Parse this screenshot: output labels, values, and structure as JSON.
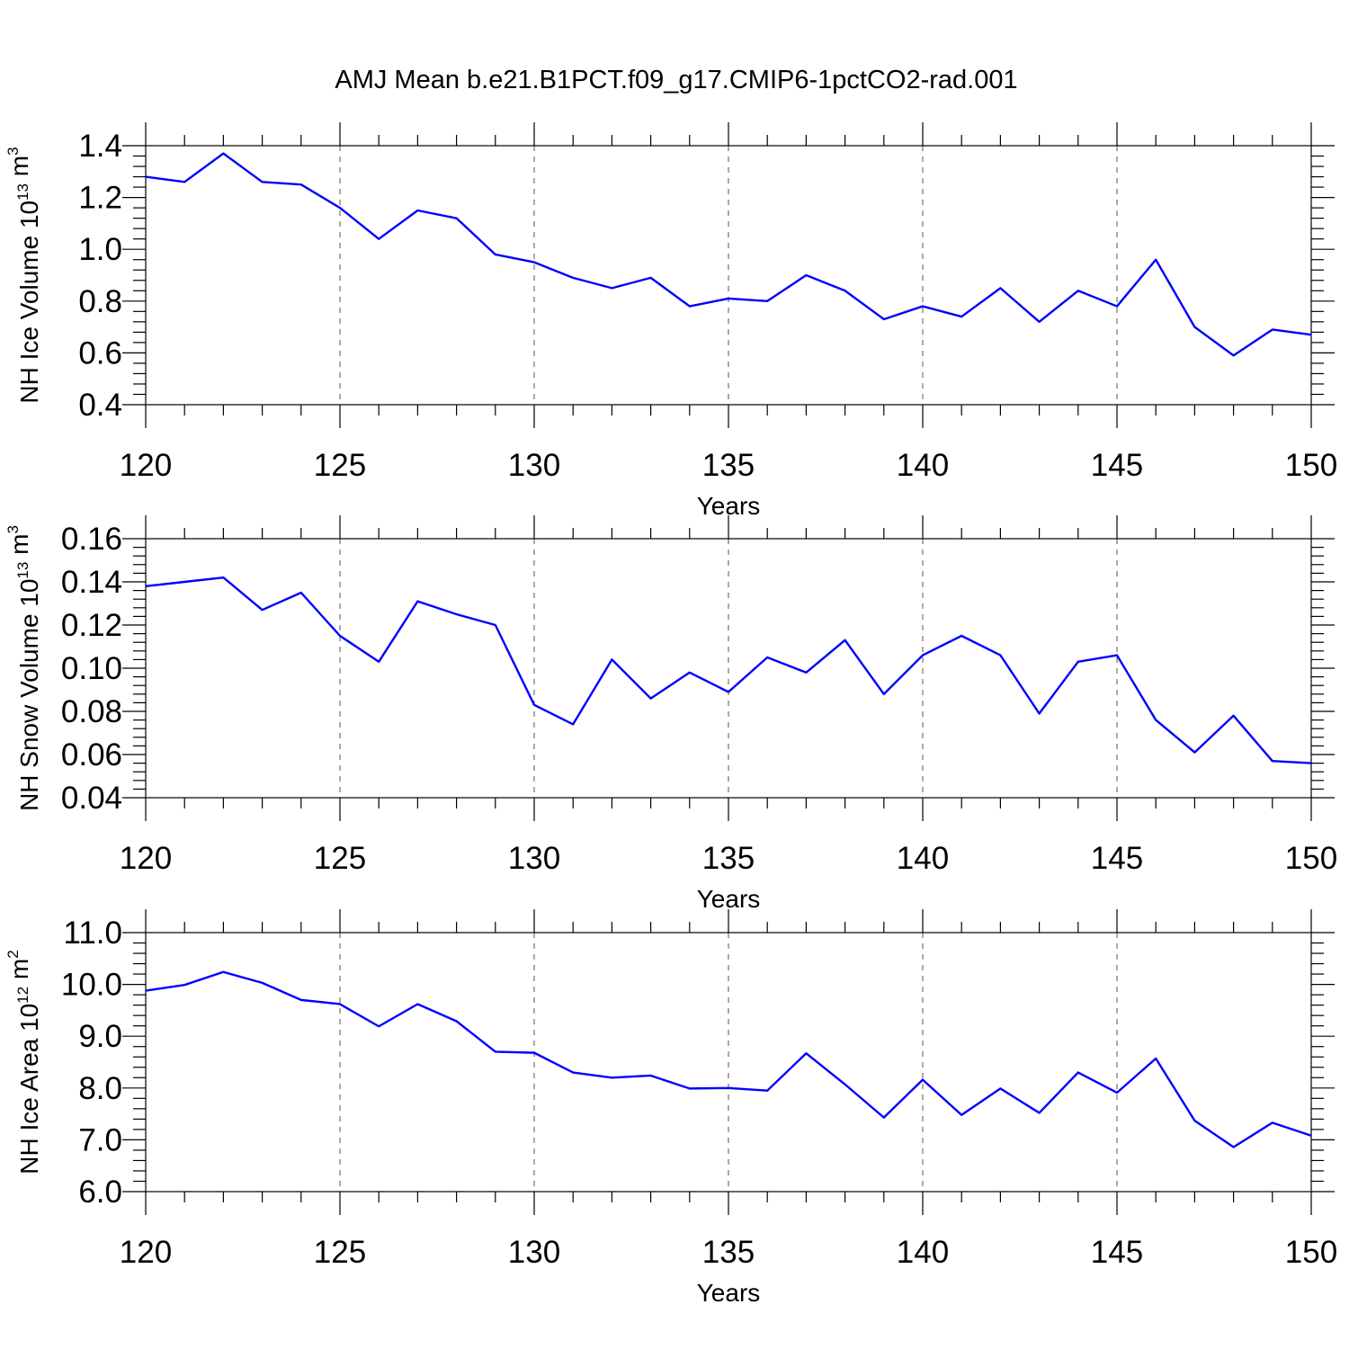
{
  "title": "AMJ Mean b.e21.B1PCT.f09_g17.CMIP6-1pctCO2-rad.001",
  "colors": {
    "line": "#0000ff",
    "grid": "#555555",
    "axis": "#000000"
  },
  "chart_data": [
    {
      "type": "line",
      "xlabel": "Years",
      "ylabel": "NH Ice Volume 10",
      "ylabel_exp": "13",
      "ylabel_unit": " m",
      "ylabel_unit_exp": "3",
      "xlim": [
        120,
        150
      ],
      "ylim": [
        0.4,
        1.4
      ],
      "xticks": [
        "120",
        "125",
        "130",
        "135",
        "140",
        "145",
        "150"
      ],
      "yticks": [
        "0.4",
        "0.6",
        "0.8",
        "1.0",
        "1.2",
        "1.4"
      ],
      "grid": "vertical-dashed-at-major-x",
      "x": [
        120,
        121,
        122,
        123,
        124,
        125,
        126,
        127,
        128,
        129,
        130,
        131,
        132,
        133,
        134,
        135,
        136,
        137,
        138,
        139,
        140,
        141,
        142,
        143,
        144,
        145,
        146,
        147,
        148,
        149,
        150
      ],
      "series": [
        {
          "values": [
            1.28,
            1.26,
            1.37,
            1.26,
            1.25,
            1.16,
            1.04,
            1.15,
            1.12,
            0.98,
            0.95,
            0.89,
            0.85,
            0.89,
            0.78,
            0.81,
            0.8,
            0.9,
            0.84,
            0.73,
            0.78,
            0.74,
            0.85,
            0.72,
            0.84,
            0.78,
            0.96,
            0.7,
            0.59,
            0.69,
            0.67
          ]
        }
      ]
    },
    {
      "type": "line",
      "xlabel": "Years",
      "ylabel": "NH Snow Volume 10",
      "ylabel_exp": "13",
      "ylabel_unit": " m",
      "ylabel_unit_exp": "3",
      "xlim": [
        120,
        150
      ],
      "ylim": [
        0.04,
        0.16
      ],
      "xticks": [
        "120",
        "125",
        "130",
        "135",
        "140",
        "145",
        "150"
      ],
      "yticks": [
        "0.04",
        "0.06",
        "0.08",
        "0.10",
        "0.12",
        "0.14",
        "0.16"
      ],
      "grid": "vertical-dashed-at-major-x",
      "x": [
        120,
        121,
        122,
        123,
        124,
        125,
        126,
        127,
        128,
        129,
        130,
        131,
        132,
        133,
        134,
        135,
        136,
        137,
        138,
        139,
        140,
        141,
        142,
        143,
        144,
        145,
        146,
        147,
        148,
        149,
        150
      ],
      "series": [
        {
          "values": [
            0.138,
            0.14,
            0.142,
            0.127,
            0.135,
            0.115,
            0.103,
            0.131,
            0.125,
            0.12,
            0.083,
            0.074,
            0.104,
            0.086,
            0.098,
            0.089,
            0.105,
            0.098,
            0.113,
            0.088,
            0.106,
            0.115,
            0.106,
            0.079,
            0.103,
            0.106,
            0.076,
            0.061,
            0.078,
            0.057,
            0.056
          ]
        }
      ]
    },
    {
      "type": "line",
      "xlabel": "Years",
      "ylabel": "NH Ice Area 10",
      "ylabel_exp": "12",
      "ylabel_unit": " m",
      "ylabel_unit_exp": "2",
      "xlim": [
        120,
        150
      ],
      "ylim": [
        6.0,
        11.0
      ],
      "xticks": [
        "120",
        "125",
        "130",
        "135",
        "140",
        "145",
        "150"
      ],
      "yticks": [
        "6.0",
        "7.0",
        "8.0",
        "9.0",
        "10.0",
        "11.0"
      ],
      "grid": "vertical-dashed-at-major-x",
      "x": [
        120,
        121,
        122,
        123,
        124,
        125,
        126,
        127,
        128,
        129,
        130,
        131,
        132,
        133,
        134,
        135,
        136,
        137,
        138,
        139,
        140,
        141,
        142,
        143,
        144,
        145,
        146,
        147,
        148,
        149,
        150
      ],
      "series": [
        {
          "values": [
            9.88,
            9.99,
            10.24,
            10.03,
            9.7,
            9.62,
            9.19,
            9.62,
            9.29,
            8.7,
            8.68,
            8.3,
            8.2,
            8.24,
            7.99,
            8.0,
            7.95,
            8.67,
            8.07,
            7.43,
            8.16,
            7.48,
            7.99,
            7.52,
            8.3,
            7.91,
            8.57,
            7.37,
            6.86,
            7.33,
            7.08
          ]
        }
      ]
    }
  ]
}
